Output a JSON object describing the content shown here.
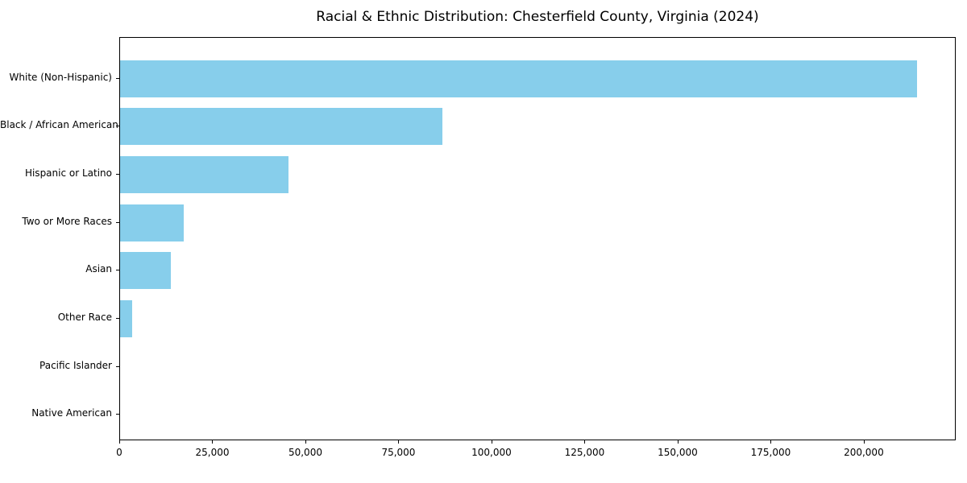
{
  "chart_data": {
    "type": "bar",
    "orientation": "horizontal",
    "title": "Racial & Ethnic Distribution: Chesterfield County, Virginia (2024)",
    "xlabel": "",
    "ylabel": "",
    "categories": [
      "White (Non-Hispanic)",
      "Black / African American",
      "Hispanic or Latino",
      "Two or More Races",
      "Asian",
      "Other Race",
      "Pacific Islander",
      "Native American"
    ],
    "values": [
      214000,
      86500,
      45300,
      17000,
      13700,
      3250,
      250,
      120
    ],
    "xlim": [
      0,
      224700
    ],
    "xticks": [
      0,
      25000,
      50000,
      75000,
      100000,
      125000,
      150000,
      175000,
      200000
    ],
    "xtick_labels": [
      "0",
      "25,000",
      "50,000",
      "75,000",
      "100,000",
      "125,000",
      "150,000",
      "175,000",
      "200,000"
    ],
    "grid": false,
    "legend": null,
    "bar_color": "#87CEEB"
  },
  "colors": {
    "bar": "#87CEEB",
    "text": "#000000",
    "frame": "#000000",
    "background": "#ffffff"
  }
}
